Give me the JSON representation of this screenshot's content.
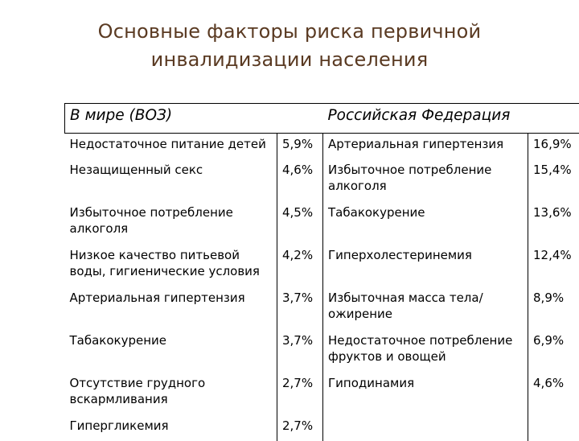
{
  "title_line1": "Основные факторы риска первичной",
  "title_line2": "инвалидизации населения",
  "table": {
    "headers": {
      "world": "В мире (ВОЗ)",
      "russia": "Российская Федерация"
    },
    "rows": [
      {
        "world_factor": "Недостаточное питание детей",
        "world_value": "5,9%",
        "russia_factor": "Артериальная гипертензия",
        "russia_value": "16,9%"
      },
      {
        "world_factor": "Незащищенный секс",
        "world_value": "4,6%",
        "russia_factor": "Избыточное потребление алкоголя",
        "russia_value": "15,4%"
      },
      {
        "world_factor": "Избыточное потребление алкоголя",
        "world_value": "4,5%",
        "russia_factor": "Табакокурение",
        "russia_value": "13,6%"
      },
      {
        "world_factor": "Низкое качество питьевой воды, гигиенические условия",
        "world_value": "4,2%",
        "russia_factor": "Гиперхолестеринемия",
        "russia_value": "12,4%"
      },
      {
        "world_factor": "Артериальная гипертензия",
        "world_value": "3,7%",
        "russia_factor": "Избыточная масса тела/ ожирение",
        "russia_value": "8,9%"
      },
      {
        "world_factor": "Табакокурение",
        "world_value": "3,7%",
        "russia_factor": "Недостаточное потребление фруктов и овощей",
        "russia_value": "6,9%"
      },
      {
        "world_factor": "Отсутствие грудного вскармливания",
        "world_value": "2,7%",
        "russia_factor": "Гиподинамия",
        "russia_value": "4,6%"
      },
      {
        "world_factor": "Гипергликемия",
        "world_value": "2,7%",
        "russia_factor": "",
        "russia_value": ""
      }
    ]
  }
}
